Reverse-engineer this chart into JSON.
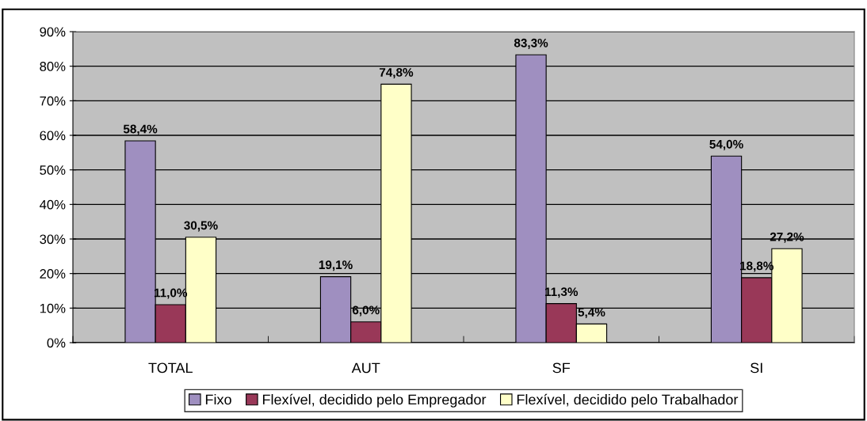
{
  "chart_data": {
    "type": "bar",
    "categories": [
      "TOTAL",
      "AUT",
      "SF",
      "SI"
    ],
    "series": [
      {
        "name": "Fixo",
        "color": "#9f8fc0",
        "values": [
          58.4,
          19.1,
          83.3,
          54.0
        ],
        "value_labels": [
          "58,4%",
          "19,1%",
          "83,3%",
          "54,0%"
        ]
      },
      {
        "name": "Flexível, decidido pelo Empregador",
        "color": "#993858",
        "values": [
          11.0,
          6.0,
          11.3,
          18.8
        ],
        "value_labels": [
          "11,0%",
          "6,0%",
          "11,3%",
          "18,8%"
        ]
      },
      {
        "name": "Flexível, decidido pelo Trabalhador",
        "color": "#ffffc8",
        "values": [
          30.5,
          74.8,
          5.4,
          27.2
        ],
        "value_labels": [
          "30,5%",
          "74,8%",
          "5,4%",
          "27,2%"
        ]
      }
    ],
    "ylim": [
      0,
      90
    ],
    "yticks": [
      {
        "value": 0,
        "label": "0%"
      },
      {
        "value": 10,
        "label": "10%"
      },
      {
        "value": 20,
        "label": "20%"
      },
      {
        "value": 30,
        "label": "30%"
      },
      {
        "value": 40,
        "label": "40%"
      },
      {
        "value": 50,
        "label": "50%"
      },
      {
        "value": 60,
        "label": "60%"
      },
      {
        "value": 70,
        "label": "70%"
      },
      {
        "value": 80,
        "label": "80%"
      },
      {
        "value": 90,
        "label": "90%"
      }
    ],
    "grid": "y",
    "legend": "bottom"
  }
}
